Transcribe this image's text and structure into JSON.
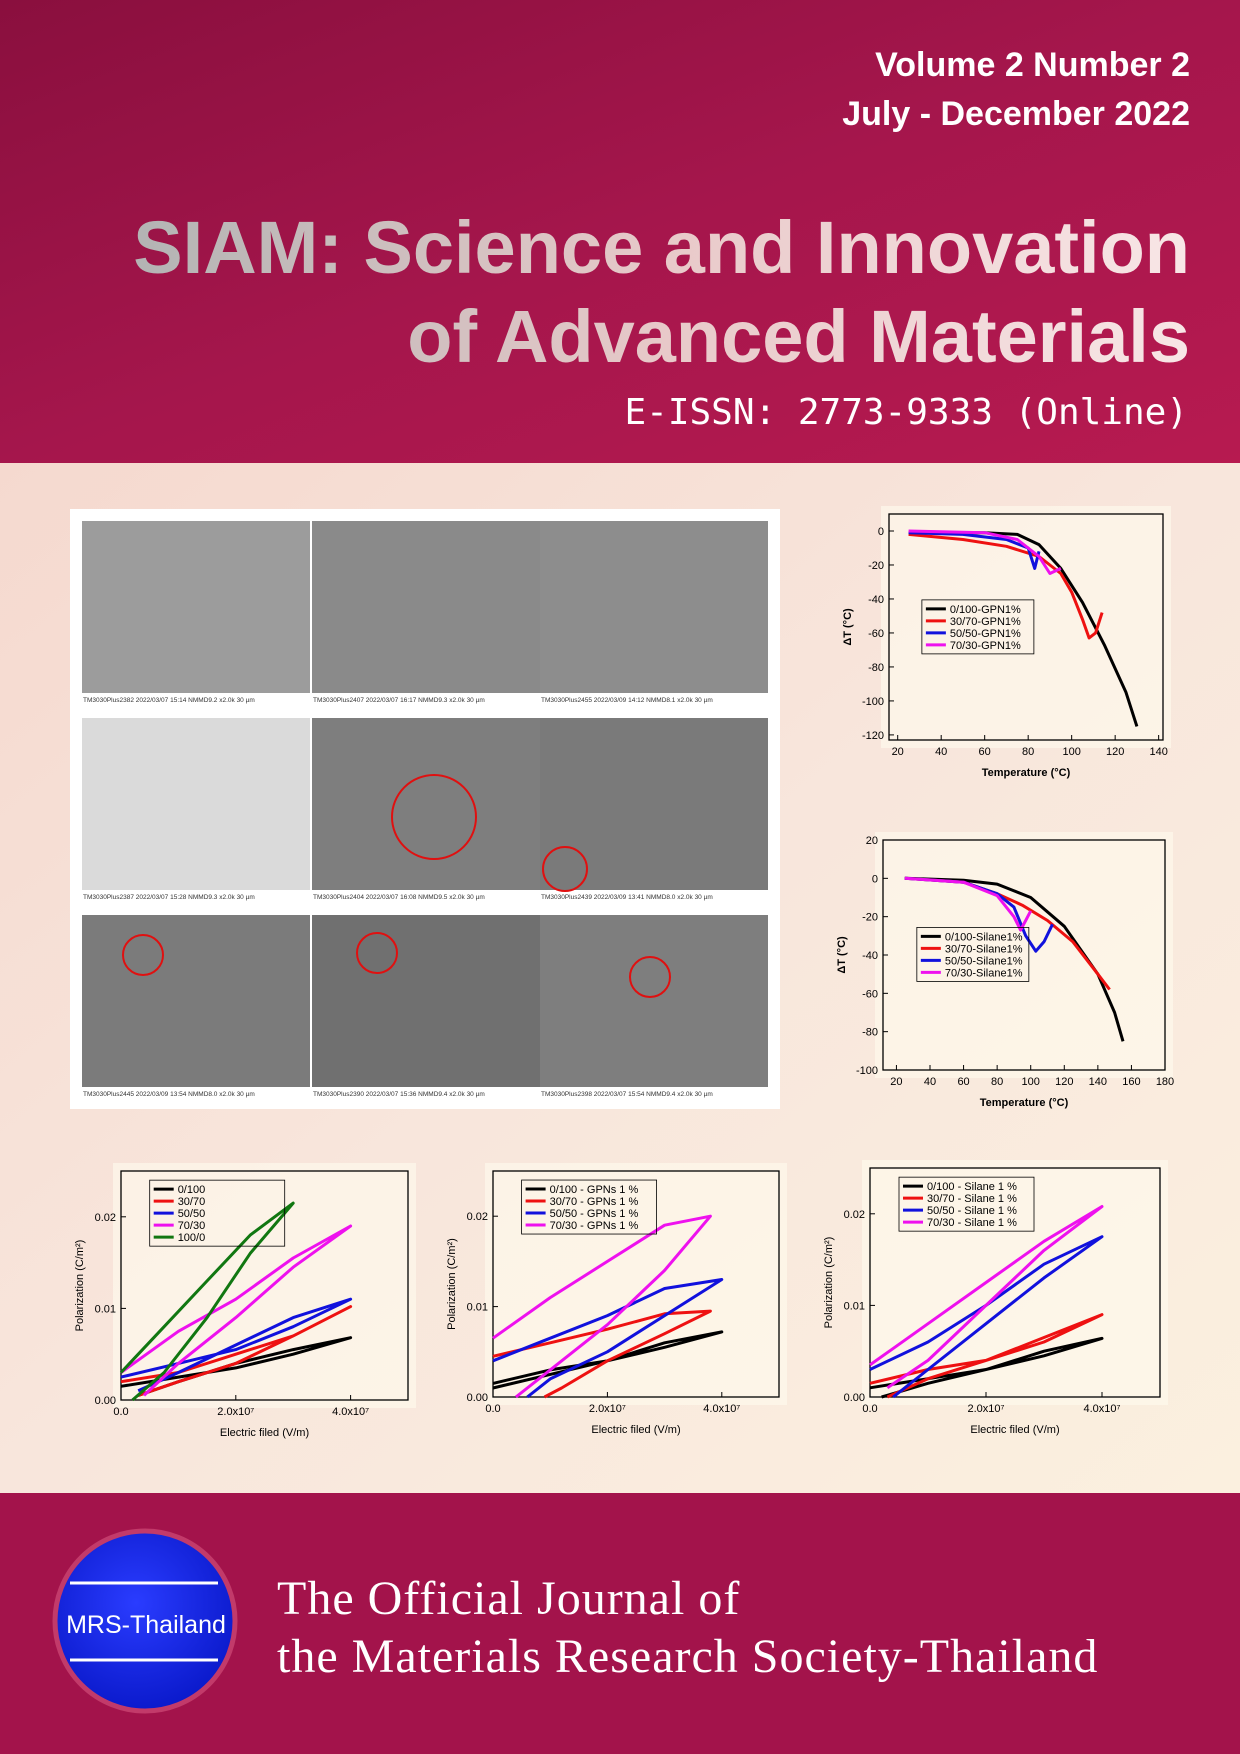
{
  "header": {
    "volume": "Volume 2 Number 2",
    "period": "July - December 2022",
    "title_line1": "SIAM: Science and Innovation",
    "title_line2": "of Advanced Materials",
    "issn": "E-ISSN: 2773-9333 (Online)"
  },
  "sem_captions": [
    "TM3030Plus2382     2022/03/07   15:14 NMMD9.2  x2.0k    30 µm",
    "TM3030Plus2407     2022/03/07   16:17 NMMD9.3  x2.0k    30 µm",
    "TM3030Plus2455     2022/03/09   14:12 NMMD8.1  x2.0k    30 µm",
    "TM3030Plus2387     2022/03/07   15:28 NMMD9.3  x2.0k    30 µm",
    "TM3030Plus2404     2022/03/07   16:08 NMMD9.5  x2.0k    30 µm",
    "TM3030Plus2439     2022/03/09   13:41 NMMD8.0  x2.0k    30 µm",
    "TM3030Plus2445     2022/03/09   13:54 NMMD8.0  x2.0k    30 µm",
    "TM3030Plus2390     2022/03/07   15:36 NMMD9.4  x2.0k    30 µm",
    "TM3030Plus2398     2022/03/07   15:54 NMMD9.4  x2.0k    30 µm"
  ],
  "chart_data": [
    {
      "type": "line",
      "xlabel": "Temperature (°C)",
      "ylabel": "ΔT (°C)",
      "legend": "center left",
      "xlim": [
        16,
        142
      ],
      "ylim": [
        -123,
        10
      ],
      "xticks": [
        20,
        40,
        60,
        80,
        100,
        120,
        140
      ],
      "yticks": [
        0,
        -20,
        -40,
        -60,
        -80,
        -100,
        -120
      ],
      "series": [
        {
          "name": "0/100-GPN1%",
          "color": "#000000",
          "x": [
            25,
            60,
            75,
            85,
            95,
            105,
            115,
            125,
            130
          ],
          "values": [
            -1,
            -1,
            -2,
            -8,
            -22,
            -42,
            -67,
            -95,
            -115
          ]
        },
        {
          "name": "30/70-GPN1%",
          "color": "#ee1111",
          "x": [
            25,
            50,
            70,
            85,
            95,
            100,
            105,
            108,
            111,
            114
          ],
          "values": [
            -2,
            -5,
            -9,
            -15,
            -25,
            -36,
            -52,
            -63,
            -60,
            -48
          ]
        },
        {
          "name": "50/50-GPN1%",
          "color": "#1111dd",
          "x": [
            25,
            50,
            70,
            80,
            83,
            85
          ],
          "values": [
            -1,
            -2,
            -5,
            -10,
            -22,
            -12
          ]
        },
        {
          "name": "70/30-GPN1%",
          "color": "#ee11ee",
          "x": [
            25,
            60,
            75,
            85,
            90,
            95
          ],
          "values": [
            0,
            -1,
            -5,
            -15,
            -25,
            -22
          ]
        }
      ]
    },
    {
      "type": "line",
      "xlabel": "Temperature (°C)",
      "ylabel": "ΔT (°C)",
      "legend": "center left",
      "xlim": [
        12,
        180
      ],
      "ylim": [
        -100,
        20
      ],
      "xticks": [
        20,
        40,
        60,
        80,
        100,
        120,
        140,
        160,
        180
      ],
      "yticks": [
        20,
        0,
        -20,
        -40,
        -60,
        -80,
        -100
      ],
      "series": [
        {
          "name": "0/100-Silane1%",
          "color": "#000000",
          "x": [
            25,
            60,
            80,
            100,
            120,
            140,
            150,
            155
          ],
          "values": [
            0,
            -1,
            -3,
            -10,
            -25,
            -50,
            -70,
            -85
          ]
        },
        {
          "name": "30/70-Silane1%",
          "color": "#ee1111",
          "x": [
            25,
            60,
            80,
            95,
            110,
            125,
            140,
            147
          ],
          "values": [
            0,
            -2,
            -8,
            -14,
            -22,
            -33,
            -50,
            -58
          ]
        },
        {
          "name": "50/50-Silane1%",
          "color": "#1111dd",
          "x": [
            25,
            60,
            80,
            90,
            97,
            103,
            108,
            113
          ],
          "values": [
            0,
            -2,
            -8,
            -15,
            -30,
            -38,
            -33,
            -24
          ]
        },
        {
          "name": "70/30-Silane1%",
          "color": "#ee11ee",
          "x": [
            25,
            60,
            80,
            90,
            94,
            97,
            100
          ],
          "values": [
            0,
            -2,
            -9,
            -20,
            -27,
            -22,
            -17
          ]
        }
      ]
    },
    {
      "type": "line",
      "xlabel": "Electric filed (V/m)",
      "ylabel": "Polarization (C/m²)",
      "legend": "upper left",
      "xlim": [
        0,
        50000000
      ],
      "ylim": [
        0,
        0.025
      ],
      "xticks": [
        {
          "value": 0,
          "label": "0.0"
        },
        {
          "value": 20000000,
          "label": "2.0x10⁷"
        },
        {
          "value": 40000000,
          "label": "4.0x10⁷"
        }
      ],
      "yticks": [
        {
          "value": 0,
          "label": "0.00"
        },
        {
          "value": 0.01,
          "label": "0.01"
        },
        {
          "value": 0.02,
          "label": "0.02"
        }
      ],
      "series": [
        {
          "name": "0/100",
          "color": "#000000",
          "x": [
            0,
            10000000,
            20000000,
            30000000,
            40000000,
            30000000,
            20000000,
            10000000,
            3000000
          ],
          "values": [
            0.0015,
            0.0025,
            0.0035,
            0.005,
            0.0068,
            0.0055,
            0.004,
            0.002,
            0.0005
          ]
        },
        {
          "name": "30/70",
          "color": "#ee1111",
          "x": [
            0,
            10000000,
            20000000,
            30000000,
            40000000,
            30000000,
            20000000,
            10000000,
            3000000
          ],
          "values": [
            0.002,
            0.003,
            0.005,
            0.007,
            0.0102,
            0.007,
            0.004,
            0.002,
            0.0005
          ]
        },
        {
          "name": "50/50",
          "color": "#1111dd",
          "x": [
            0,
            10000000,
            20000000,
            30000000,
            40000000,
            30000000,
            20000000,
            10000000,
            3000000
          ],
          "values": [
            0.0025,
            0.004,
            0.0055,
            0.008,
            0.011,
            0.009,
            0.006,
            0.003,
            0.001
          ]
        },
        {
          "name": "70/30",
          "color": "#ee11ee",
          "x": [
            0,
            10000000,
            20000000,
            30000000,
            40000000,
            30000000,
            20000000,
            10000000,
            4000000
          ],
          "values": [
            0.003,
            0.0075,
            0.011,
            0.0155,
            0.019,
            0.0145,
            0.009,
            0.004,
            0.0005
          ]
        },
        {
          "name": "100/0",
          "color": "#117711",
          "x": [
            0,
            7500000,
            15000000,
            22500000,
            30000000,
            22500000,
            15000000,
            7500000,
            2000000
          ],
          "values": [
            0.003,
            0.008,
            0.013,
            0.018,
            0.0215,
            0.016,
            0.009,
            0.003,
            0
          ]
        }
      ]
    },
    {
      "type": "line",
      "xlabel": "Electric filed (V/m)",
      "ylabel": "Polarization (C/m²)",
      "legend": "upper left",
      "xlim": [
        0,
        50000000
      ],
      "ylim": [
        0,
        0.025
      ],
      "xticks": [
        {
          "value": 0,
          "label": "0.0"
        },
        {
          "value": 20000000,
          "label": "2.0x10⁷"
        },
        {
          "value": 40000000,
          "label": "4.0x10⁷"
        }
      ],
      "yticks": [
        {
          "value": 0,
          "label": "0.00"
        },
        {
          "value": 0.01,
          "label": "0.01"
        },
        {
          "value": 0.02,
          "label": "0.02"
        }
      ],
      "series": [
        {
          "name": "0/100 - GPNs 1 %",
          "color": "#000000",
          "x": [
            0,
            10000000,
            20000000,
            30000000,
            40000000,
            30000000,
            20000000,
            10000000,
            0
          ],
          "values": [
            0.0015,
            0.003,
            0.004,
            0.0055,
            0.0072,
            0.006,
            0.004,
            0.0025,
            0.001
          ]
        },
        {
          "name": "30/70 - GPNs 1 %",
          "color": "#ee1111",
          "x": [
            0,
            10000000,
            20000000,
            30000000,
            38000000,
            30000000,
            20000000,
            12000000,
            9000000
          ],
          "values": [
            0.0045,
            0.006,
            0.0075,
            0.0092,
            0.0095,
            0.007,
            0.004,
            0.001,
            0
          ]
        },
        {
          "name": "50/50 - GPNs 1 %",
          "color": "#1111dd",
          "x": [
            0,
            10000000,
            20000000,
            30000000,
            40000000,
            30000000,
            20000000,
            10000000,
            6000000
          ],
          "values": [
            0.004,
            0.0065,
            0.009,
            0.012,
            0.013,
            0.009,
            0.005,
            0.002,
            0
          ]
        },
        {
          "name": "70/30 - GPNs 1 %",
          "color": "#ee11ee",
          "x": [
            0,
            10000000,
            20000000,
            30000000,
            38000000,
            30000000,
            20000000,
            10000000,
            4000000
          ],
          "values": [
            0.0065,
            0.011,
            0.015,
            0.019,
            0.02,
            0.014,
            0.008,
            0.003,
            0
          ]
        }
      ]
    },
    {
      "type": "line",
      "xlabel": "Electric filed (V/m)",
      "ylabel": "Polarization (C/m²)",
      "legend": "upper left",
      "xlim": [
        0,
        50000000
      ],
      "ylim": [
        0,
        0.025
      ],
      "xticks": [
        {
          "value": 0,
          "label": "0.0"
        },
        {
          "value": 20000000,
          "label": "2.0x10⁷"
        },
        {
          "value": 40000000,
          "label": "4.0x10⁷"
        }
      ],
      "yticks": [
        {
          "value": 0,
          "label": "0.00"
        },
        {
          "value": 0.01,
          "label": "0.01"
        },
        {
          "value": 0.02,
          "label": "0.02"
        }
      ],
      "series": [
        {
          "name": "0/100 - Silane 1 %",
          "color": "#000000",
          "x": [
            0,
            10000000,
            20000000,
            30000000,
            40000000,
            30000000,
            20000000,
            10000000,
            2000000
          ],
          "values": [
            0.001,
            0.002,
            0.003,
            0.0045,
            0.0064,
            0.005,
            0.003,
            0.0015,
            0
          ]
        },
        {
          "name": "30/70 - Silane 1 %",
          "color": "#ee1111",
          "x": [
            0,
            10000000,
            20000000,
            30000000,
            40000000,
            30000000,
            20000000,
            10000000,
            3000000
          ],
          "values": [
            0.0015,
            0.003,
            0.004,
            0.006,
            0.009,
            0.0065,
            0.004,
            0.002,
            0
          ]
        },
        {
          "name": "50/50 - Silane 1 %",
          "color": "#1111dd",
          "x": [
            0,
            10000000,
            20000000,
            30000000,
            40000000,
            30000000,
            20000000,
            10000000,
            4000000
          ],
          "values": [
            0.003,
            0.006,
            0.01,
            0.0145,
            0.0175,
            0.013,
            0.008,
            0.003,
            0
          ]
        },
        {
          "name": "70/30 - Silane 1 %",
          "color": "#ee11ee",
          "x": [
            0,
            10000000,
            20000000,
            30000000,
            40000000,
            30000000,
            20000000,
            10000000,
            3000000
          ],
          "values": [
            0.0035,
            0.008,
            0.0125,
            0.017,
            0.0208,
            0.016,
            0.01,
            0.004,
            0.001
          ]
        }
      ]
    }
  ],
  "footer": {
    "logo": "MRS-Thailand",
    "line1": "The Official Journal of",
    "line2": "the Materials Research Society-Thailand"
  }
}
